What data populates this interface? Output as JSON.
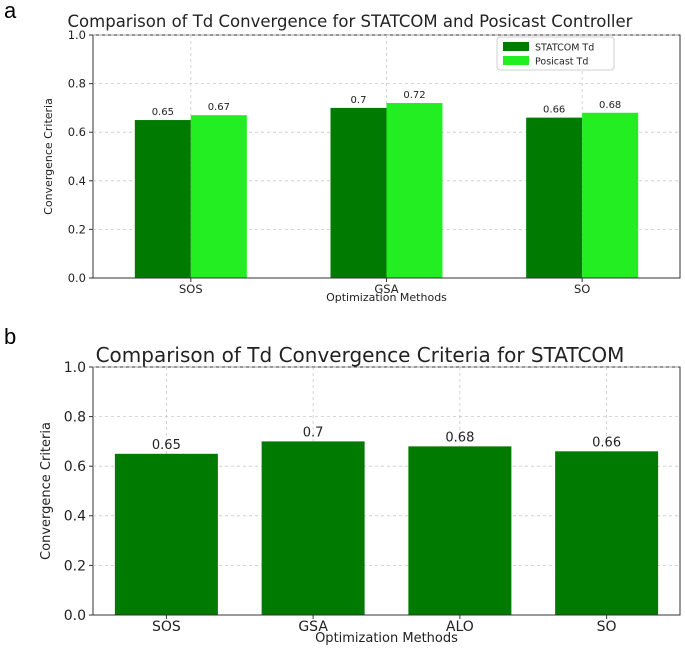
{
  "panels": [
    {
      "letter": "a"
    },
    {
      "letter": "b"
    }
  ],
  "chart_data": [
    {
      "type": "bar",
      "title": "Comparison of Td Convergence for STATCOM and Posicast Controller",
      "xlabel": "Optimization Methods",
      "ylabel": "Convergence Criteria",
      "categories": [
        "SOS",
        "GSA",
        "SO"
      ],
      "series": [
        {
          "name": "STATCOM Td",
          "values": [
            0.65,
            0.7,
            0.66
          ],
          "labels": [
            "0.65",
            "0.7",
            "0.66"
          ],
          "color": "#007a00"
        },
        {
          "name": "Posicast Td",
          "values": [
            0.67,
            0.72,
            0.68
          ],
          "labels": [
            "0.67",
            "0.72",
            "0.68"
          ],
          "color": "#22ee22"
        }
      ],
      "ylim": [
        0,
        1.0
      ],
      "yticks": [
        "0.0",
        "0.2",
        "0.4",
        "0.6",
        "0.8",
        "1.0"
      ],
      "grid": true,
      "legend": "top-right"
    },
    {
      "type": "bar",
      "title": "Comparison of Td Convergence Criteria for STATCOM",
      "xlabel": "Optimization Methods",
      "ylabel": "Convergence Criteria",
      "categories": [
        "SOS",
        "GSA",
        "ALO",
        "SO"
      ],
      "series": [
        {
          "values": [
            0.65,
            0.7,
            0.68,
            0.66
          ],
          "labels": [
            "0.65",
            "0.7",
            "0.68",
            "0.66"
          ],
          "color": "#007a00"
        }
      ],
      "ylim": [
        0,
        1.0
      ],
      "yticks": [
        "0.0",
        "0.2",
        "0.4",
        "0.6",
        "0.8",
        "1.0"
      ],
      "grid": true,
      "legend": "none"
    }
  ]
}
